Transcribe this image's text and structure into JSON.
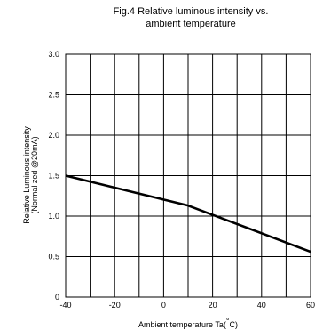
{
  "chart_data": {
    "type": "line",
    "title_line1": "Fig.4 Relative luminous intensity vs.",
    "title_line2": "ambient temperature",
    "xlabel_prefix": "Ambient temperature Ta(",
    "xlabel_unit": "°",
    "xlabel_suffix": "C)",
    "ylabel_line1": "Relative Luminous intensity",
    "ylabel_line2": "(Normal zed @20mA)",
    "xlim": [
      -40,
      60
    ],
    "ylim": [
      0,
      3.0
    ],
    "x_ticks": [
      -40,
      -30,
      -20,
      -10,
      0,
      10,
      20,
      30,
      40,
      50,
      60
    ],
    "x_tick_labels": [
      "-40",
      "",
      "-20",
      "",
      "0",
      "",
      "20",
      "",
      "40",
      "",
      "60"
    ],
    "y_ticks": [
      0,
      0.5,
      1.0,
      1.5,
      2.0,
      2.5,
      3.0
    ],
    "y_tick_labels": [
      "0",
      "0.5",
      "1.0",
      "1.5",
      "2.0",
      "2.5",
      "3.0"
    ],
    "grid": true,
    "series": [
      {
        "x": [
          -40,
          10,
          60
        ],
        "y": [
          1.5,
          1.13,
          0.56
        ]
      }
    ]
  }
}
